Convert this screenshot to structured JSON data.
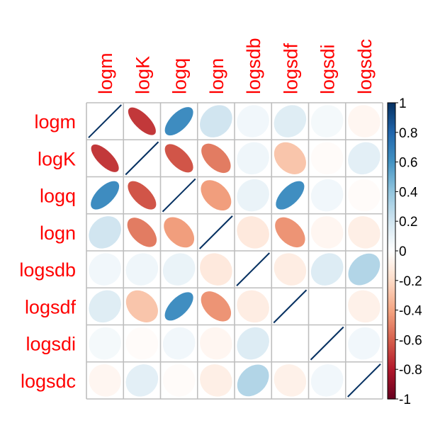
{
  "chart_data": {
    "type": "heatmap",
    "variables": [
      "logm",
      "logK",
      "logq",
      "logn",
      "logsdb",
      "logsdf",
      "logsdi",
      "logsdc"
    ],
    "matrix": [
      [
        1.0,
        -0.71,
        0.63,
        0.2,
        0.06,
        0.14,
        0.05,
        -0.05
      ],
      [
        -0.71,
        1.0,
        -0.63,
        -0.52,
        0.07,
        -0.28,
        -0.02,
        0.12
      ],
      [
        0.63,
        -0.63,
        1.0,
        -0.42,
        0.09,
        0.62,
        0.06,
        -0.02
      ],
      [
        0.2,
        -0.52,
        -0.42,
        1.0,
        -0.12,
        -0.45,
        -0.05,
        -0.09
      ],
      [
        0.06,
        0.07,
        0.09,
        -0.12,
        1.0,
        -0.1,
        0.15,
        0.3
      ],
      [
        0.14,
        -0.28,
        0.62,
        -0.45,
        -0.1,
        1.0,
        0.0,
        -0.08
      ],
      [
        0.05,
        -0.02,
        0.06,
        -0.05,
        0.15,
        0.0,
        1.0,
        0.06
      ],
      [
        -0.05,
        0.12,
        -0.02,
        -0.09,
        0.3,
        -0.08,
        0.06,
        1.0
      ]
    ],
    "method": "ellipse",
    "colorbar": {
      "ticks": [
        "1",
        "0.8",
        "0.6",
        "0.4",
        "0.2",
        "0",
        "-0.2",
        "-0.4",
        "-0.6",
        "-0.8",
        "-1"
      ],
      "range": [
        -1,
        1
      ],
      "colors": [
        "#67001F",
        "#B2182B",
        "#D6604D",
        "#F4A582",
        "#FDDBC7",
        "#FFFFFF",
        "#D1E5F0",
        "#92C5DE",
        "#4393C3",
        "#2166AC",
        "#053061"
      ]
    },
    "label_color": "#ff0000",
    "grid_color": "#bebebe",
    "diagonal_line_color": "#053061"
  }
}
